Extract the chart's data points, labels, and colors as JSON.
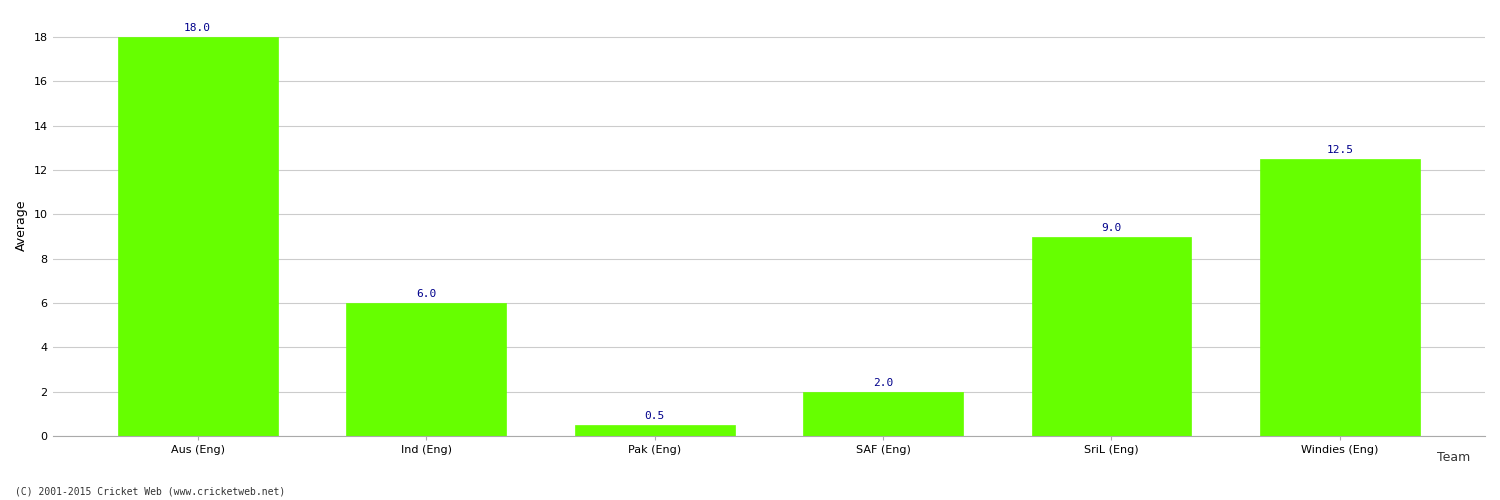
{
  "categories": [
    "Aus (Eng)",
    "Ind (Eng)",
    "Pak (Eng)",
    "SAF (Eng)",
    "SriL (Eng)",
    "Windies (Eng)"
  ],
  "values": [
    18.0,
    6.0,
    0.5,
    2.0,
    9.0,
    12.5
  ],
  "bar_color": "#66ff00",
  "bar_edge_color": "#66ff00",
  "value_label_color": "#00008b",
  "xlabel": "Team",
  "ylabel": "Average",
  "ylim": [
    0,
    19
  ],
  "yticks": [
    0,
    2,
    4,
    6,
    8,
    10,
    12,
    14,
    16,
    18
  ],
  "background_color": "#ffffff",
  "grid_color": "#cccccc",
  "footnote": "(C) 2001-2015 Cricket Web (www.cricketweb.net)",
  "value_fontsize": 8,
  "label_fontsize": 8,
  "axis_label_fontsize": 9,
  "bar_width": 0.7
}
